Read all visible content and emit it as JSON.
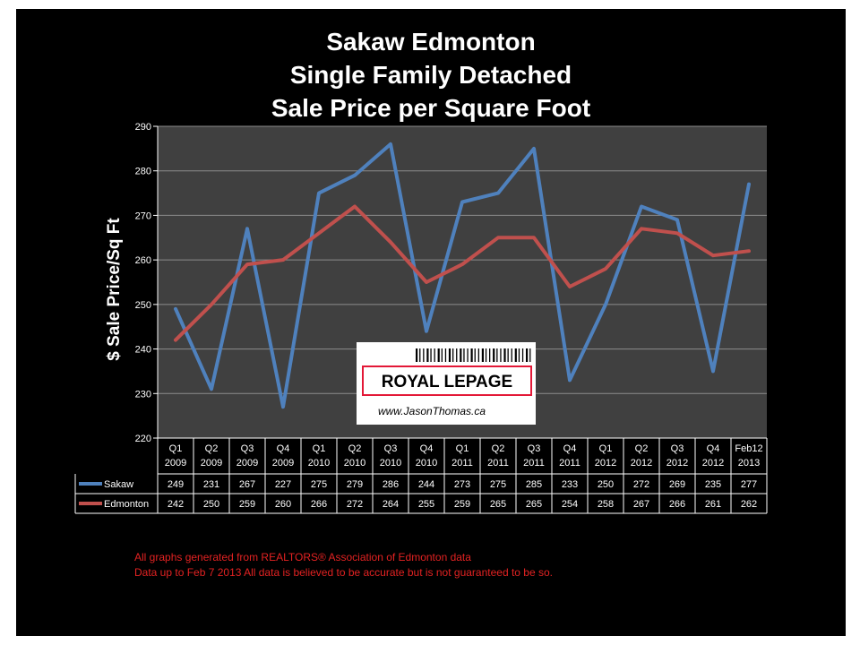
{
  "chart_data": {
    "type": "line",
    "title": [
      "Sakaw Edmonton",
      "Single Family Detached",
      "Sale Price per Square Foot"
    ],
    "ylabel": "$ Sale Price/Sq Ft",
    "xlabel": "",
    "ylim": [
      220,
      290
    ],
    "ytick_step": 10,
    "grid": true,
    "categories": [
      [
        "Q1",
        "2009"
      ],
      [
        "Q2",
        "2009"
      ],
      [
        "Q3",
        "2009"
      ],
      [
        "Q4",
        "2009"
      ],
      [
        "Q1",
        "2010"
      ],
      [
        "Q2",
        "2010"
      ],
      [
        "Q3",
        "2010"
      ],
      [
        "Q4",
        "2010"
      ],
      [
        "Q1",
        "2011"
      ],
      [
        "Q2",
        "2011"
      ],
      [
        "Q3",
        "2011"
      ],
      [
        "Q4",
        "2011"
      ],
      [
        "Q1",
        "2012"
      ],
      [
        "Q2",
        "2012"
      ],
      [
        "Q3",
        "2012"
      ],
      [
        "Q4",
        "2012"
      ],
      [
        "Feb12",
        "2013"
      ]
    ],
    "series": [
      {
        "name": "Sakaw",
        "color": "#4f81bd",
        "values": [
          249,
          231,
          267,
          227,
          275,
          279,
          286,
          244,
          273,
          275,
          285,
          233,
          250,
          272,
          269,
          235,
          277
        ]
      },
      {
        "name": "Edmonton",
        "color": "#c0504d",
        "values": [
          242,
          250,
          259,
          260,
          266,
          272,
          264,
          255,
          259,
          265,
          265,
          254,
          258,
          267,
          266,
          261,
          262
        ]
      }
    ],
    "legend": "data-table"
  },
  "logo": {
    "brand": "ROYAL LEPAGE",
    "url": "www.JasonThomas.ca",
    "color": "#e31837"
  },
  "footer": {
    "line1": "All graphs generated from REALTORS® Association of Edmonton data",
    "line2": "Data up to  Feb 7 2013  All data is believed to be accurate but is not guaranteed to be so."
  }
}
